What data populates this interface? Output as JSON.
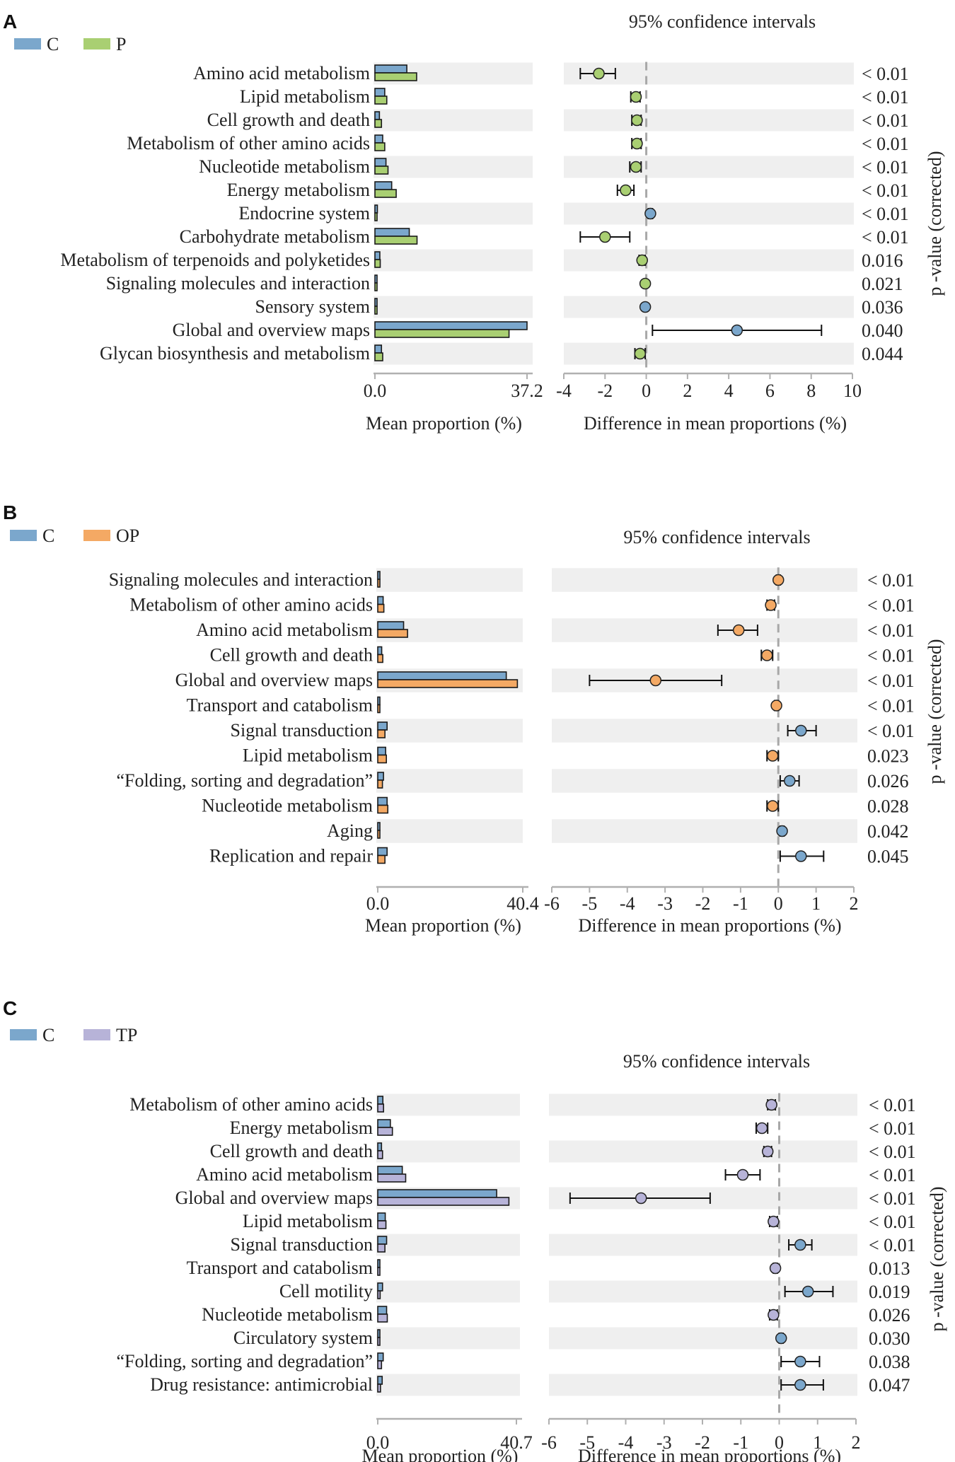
{
  "colors": {
    "C": "#7ba7cc",
    "P": "#a9cf72",
    "OP": "#f4a964",
    "TP": "#b7b3d8",
    "band": "#efefef",
    "axis": "#b0b0b0",
    "zero_line": "#a8a8a8",
    "bar_outline": "#1a1a1a"
  },
  "common": {
    "ci_title": "95% confidence intervals",
    "xlabel_bar": "Mean proportion (%)",
    "xlabel_diff": "Difference in mean proportions (%)",
    "ylabel_p": "p -value (corrected)",
    "bar_min_label": "0.0"
  },
  "chart_data": [
    {
      "type": "bar",
      "panel": "A",
      "title": "95% confidence intervals",
      "legend": [
        "C",
        "P"
      ],
      "xlabel": "Mean proportion (%)",
      "xlim": [
        0,
        37.2
      ],
      "xticks": [
        "0.0",
        "37.2"
      ],
      "categories": [
        "Amino acid metabolism",
        "Lipid metabolism",
        "Cell growth and death",
        "Metabolism of other amino acids",
        "Nucleotide metabolism",
        "Energy metabolism",
        "Endocrine system",
        "Carbohydrate metabolism",
        "Metabolism of terpenoids and polyketides",
        "Signaling molecules and interaction",
        "Sensory system",
        "Global and overview maps",
        "Glycan biosynthesis and metabolism"
      ],
      "series": [
        {
          "name": "C",
          "values": [
            7.8,
            2.4,
            1.1,
            1.9,
            2.7,
            4.1,
            0.6,
            8.4,
            1.2,
            0.3,
            0.4,
            37.2,
            1.6
          ]
        },
        {
          "name": "P",
          "values": [
            10.2,
            2.9,
            1.6,
            2.4,
            3.2,
            5.2,
            0.5,
            10.3,
            1.3,
            0.3,
            0.3,
            32.8,
            1.9
          ]
        }
      ]
    },
    {
      "type": "scatter",
      "panel": "A",
      "xlabel": "Difference in mean proportions (%)",
      "ylabel": "p -value (corrected)",
      "xlim": [
        -4,
        10
      ],
      "xticks": [
        -4,
        -2,
        0,
        2,
        4,
        6,
        8,
        10
      ],
      "categories": [
        "Amino acid metabolism",
        "Lipid metabolism",
        "Cell growth and death",
        "Metabolism of other amino acids",
        "Nucleotide metabolism",
        "Energy metabolism",
        "Endocrine system",
        "Carbohydrate metabolism",
        "Metabolism of terpenoids and polyketides",
        "Signaling molecules and interaction",
        "Sensory system",
        "Global and overview maps",
        "Glycan biosynthesis and metabolism"
      ],
      "diff": [
        -2.3,
        -0.5,
        -0.45,
        -0.45,
        -0.5,
        -1.0,
        0.2,
        -2.0,
        -0.2,
        -0.05,
        -0.05,
        4.4,
        -0.3
      ],
      "ci_low": [
        -3.2,
        -0.75,
        -0.7,
        -0.7,
        -0.8,
        -1.4,
        0.1,
        -3.2,
        -0.35,
        -0.1,
        -0.1,
        0.3,
        -0.55
      ],
      "ci_high": [
        -1.5,
        -0.3,
        -0.25,
        -0.25,
        -0.25,
        -0.6,
        0.3,
        -0.8,
        -0.05,
        0.0,
        0.0,
        8.5,
        -0.05
      ],
      "point_group": [
        "P",
        "P",
        "P",
        "P",
        "P",
        "P",
        "C",
        "P",
        "P",
        "P",
        "C",
        "C",
        "P"
      ],
      "p_values": [
        "< 0.01",
        "< 0.01",
        "< 0.01",
        "< 0.01",
        "< 0.01",
        "< 0.01",
        "< 0.01",
        "< 0.01",
        "0.016",
        "0.021",
        "0.036",
        "0.040",
        "0.044"
      ]
    },
    {
      "type": "bar",
      "panel": "B",
      "title": "95% confidence intervals",
      "legend": [
        "C",
        "OP"
      ],
      "xlabel": "Mean proportion (%)",
      "xlim": [
        0,
        40.4
      ],
      "xticks": [
        "0.0",
        "40.4"
      ],
      "categories": [
        "Signaling molecules and interaction",
        "Metabolism of other amino acids",
        "Amino acid metabolism",
        "Cell growth and death",
        "Global and overview maps",
        "Transport and catabolism",
        "Signal transduction",
        "Lipid metabolism",
        "“Folding, sorting and degradation”",
        "Nucleotide metabolism",
        "Aging",
        "Replication and repair"
      ],
      "series": [
        {
          "name": "C",
          "values": [
            0.1,
            1.5,
            7.2,
            1.1,
            35.8,
            0.5,
            2.6,
            2.2,
            1.6,
            2.6,
            0.4,
            2.6
          ]
        },
        {
          "name": "OP",
          "values": [
            0.2,
            1.7,
            8.3,
            1.4,
            38.9,
            0.5,
            2.0,
            2.4,
            1.3,
            2.8,
            0.3,
            2.0
          ]
        }
      ]
    },
    {
      "type": "scatter",
      "panel": "B",
      "xlabel": "Difference in mean proportions (%)",
      "ylabel": "p -value (corrected)",
      "xlim": [
        -6,
        2
      ],
      "xticks": [
        -6,
        -5,
        -4,
        -3,
        -2,
        -1,
        0,
        1,
        2
      ],
      "categories": [
        "Signaling molecules and interaction",
        "Metabolism of other amino acids",
        "Amino acid metabolism",
        "Cell growth and death",
        "Global and overview maps",
        "Transport and catabolism",
        "Signal transduction",
        "Lipid metabolism",
        "“Folding, sorting and degradation”",
        "Nucleotide metabolism",
        "Aging",
        "Replication and repair"
      ],
      "diff": [
        0.0,
        -0.2,
        -1.05,
        -0.3,
        -3.25,
        -0.05,
        0.6,
        -0.15,
        0.3,
        -0.15,
        0.1,
        0.6
      ],
      "ci_low": [
        -0.05,
        -0.3,
        -1.6,
        -0.45,
        -5.0,
        -0.1,
        0.25,
        -0.3,
        0.05,
        -0.3,
        0.05,
        0.05
      ],
      "ci_high": [
        0.05,
        -0.1,
        -0.55,
        -0.15,
        -1.5,
        0.0,
        1.0,
        0.0,
        0.55,
        0.0,
        0.15,
        1.2
      ],
      "point_group": [
        "OP",
        "OP",
        "OP",
        "OP",
        "OP",
        "OP",
        "C",
        "OP",
        "C",
        "OP",
        "C",
        "C"
      ],
      "p_values": [
        "< 0.01",
        "< 0.01",
        "< 0.01",
        "< 0.01",
        "< 0.01",
        "< 0.01",
        "< 0.01",
        "0.023",
        "0.026",
        "0.028",
        "0.042",
        "0.045"
      ]
    },
    {
      "type": "bar",
      "panel": "C",
      "title": "95% confidence intervals",
      "legend": [
        "C",
        "TP"
      ],
      "xlabel": "Mean proportion (%)",
      "xlim": [
        0,
        40.7
      ],
      "xticks": [
        "0.0",
        "40.7"
      ],
      "categories": [
        "Metabolism of other amino acids",
        "Energy metabolism",
        "Cell growth and death",
        "Amino acid metabolism",
        "Global and overview maps",
        "Lipid metabolism",
        "Signal transduction",
        "Transport and catabolism",
        "Cell motility",
        "Nucleotide metabolism",
        "Circulatory system",
        "“Folding, sorting and degradation”",
        "Drug resistance: antimicrobial"
      ],
      "series": [
        {
          "name": "C",
          "values": [
            1.5,
            3.7,
            1.1,
            7.2,
            34.9,
            2.2,
            2.6,
            0.5,
            1.4,
            2.6,
            0.3,
            1.6,
            1.3
          ]
        },
        {
          "name": "TP",
          "values": [
            1.7,
            4.3,
            1.4,
            8.2,
            38.5,
            2.4,
            2.1,
            0.5,
            0.7,
            2.8,
            0.2,
            1.1,
            0.8
          ]
        }
      ]
    },
    {
      "type": "scatter",
      "panel": "C",
      "xlabel": "Difference in mean proportions (%)",
      "ylabel": "p -value (corrected)",
      "xlim": [
        -6,
        2
      ],
      "xticks": [
        -6,
        -5,
        -4,
        -3,
        -2,
        -1,
        0,
        1,
        2
      ],
      "categories": [
        "Metabolism of other amino acids",
        "Energy metabolism",
        "Cell growth and death",
        "Amino acid metabolism",
        "Global and overview maps",
        "Lipid metabolism",
        "Signal transduction",
        "Transport and catabolism",
        "Cell motility",
        "Nucleotide metabolism",
        "Circulatory system",
        "“Folding, sorting and degradation”",
        "Drug resistance: antimicrobial"
      ],
      "diff": [
        -0.2,
        -0.45,
        -0.3,
        -0.95,
        -3.6,
        -0.15,
        0.55,
        -0.1,
        0.75,
        -0.15,
        0.05,
        0.55,
        0.55
      ],
      "ci_low": [
        -0.3,
        -0.6,
        -0.4,
        -1.4,
        -5.45,
        -0.25,
        0.25,
        -0.15,
        0.15,
        -0.25,
        0.0,
        0.05,
        0.05
      ],
      "ci_high": [
        -0.1,
        -0.3,
        -0.2,
        -0.5,
        -1.8,
        -0.05,
        0.85,
        -0.05,
        1.4,
        -0.05,
        0.1,
        1.05,
        1.15
      ],
      "point_group": [
        "TP",
        "TP",
        "TP",
        "TP",
        "TP",
        "TP",
        "C",
        "TP",
        "C",
        "TP",
        "C",
        "C",
        "C"
      ],
      "p_values": [
        "< 0.01",
        "< 0.01",
        "< 0.01",
        "< 0.01",
        "< 0.01",
        "< 0.01",
        "< 0.01",
        "0.013",
        "0.019",
        "0.026",
        "0.030",
        "0.038",
        "0.047"
      ]
    }
  ]
}
